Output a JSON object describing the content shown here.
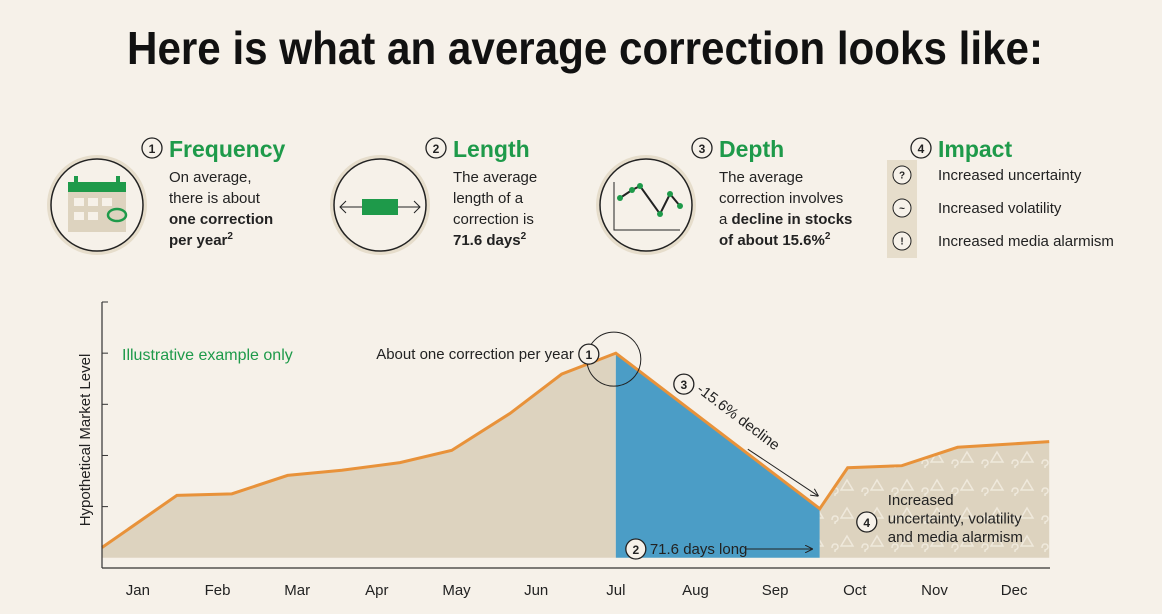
{
  "header": {
    "title": "Here is what an average correction looks like:"
  },
  "facts": [
    {
      "number": "1",
      "title": "Frequency",
      "lines": [
        [
          {
            "text": "On average,"
          }
        ],
        [
          {
            "text": "there is about"
          }
        ],
        [
          {
            "text": "one correction",
            "bold": true
          }
        ],
        [
          {
            "text": "per year",
            "bold": true
          },
          {
            "text": "2",
            "bold": true,
            "sup": true
          }
        ]
      ]
    },
    {
      "number": "2",
      "title": "Length",
      "lines": [
        [
          {
            "text": "The average"
          }
        ],
        [
          {
            "text": "length of a"
          }
        ],
        [
          {
            "text": "correction is"
          }
        ],
        [
          {
            "text": "71.6 days",
            "bold": true
          },
          {
            "text": "2",
            "bold": true,
            "sup": true
          }
        ]
      ]
    },
    {
      "number": "3",
      "title": "Depth",
      "lines": [
        [
          {
            "text": "The average"
          }
        ],
        [
          {
            "text": "correction involves"
          }
        ],
        [
          {
            "text": "a "
          },
          {
            "text": "decline in stocks",
            "bold": true
          }
        ],
        [
          {
            "text": "of about 15.6%",
            "bold": true
          },
          {
            "text": "2",
            "bold": true,
            "sup": true
          }
        ]
      ]
    },
    {
      "number": "4",
      "title": "Impact",
      "items": [
        "Increased uncertainty",
        "Increased volatility",
        "Increased media alarmism"
      ],
      "icons": [
        "?",
        "~",
        "!"
      ]
    }
  ],
  "chart_data": {
    "type": "area",
    "ylabel": "Hypothetical Market Level",
    "x": [
      -0.45,
      0.49,
      1.18,
      1.88,
      2.56,
      3.29,
      3.94,
      4.67,
      5.32,
      6.0,
      8.56,
      8.91,
      9.59,
      10.29,
      11.44
    ],
    "values": [
      0.2,
      1.22,
      1.25,
      1.61,
      1.71,
      1.86,
      2.1,
      2.82,
      3.59,
      4.0,
      0.96,
      1.76,
      1.8,
      2.16,
      2.27
    ],
    "xlim": [
      -0.45,
      11.45
    ],
    "xticks": [
      {
        "value": 0,
        "label": "Jan"
      },
      {
        "value": 1,
        "label": "Feb"
      },
      {
        "value": 2,
        "label": "Mar"
      },
      {
        "value": 3,
        "label": "Apr"
      },
      {
        "value": 4,
        "label": "May"
      },
      {
        "value": 5,
        "label": "Jun"
      },
      {
        "value": 6,
        "label": "Jul"
      },
      {
        "value": 7,
        "label": "Aug"
      },
      {
        "value": 8,
        "label": "Sep"
      },
      {
        "value": 9,
        "label": "Oct"
      },
      {
        "value": 10,
        "label": "Nov"
      },
      {
        "value": 11,
        "label": "Dec"
      }
    ],
    "ylim": [
      -0.2,
      5
    ],
    "yticks": [
      1,
      2,
      3,
      4,
      5
    ],
    "line_color": "#e8923a",
    "area_color": "#ddd3bf",
    "correction_color": "#4b9dc6",
    "annotations": {
      "note": "Illustrative example only",
      "peak": {
        "number": "1",
        "text": "About one correction per year"
      },
      "decline": {
        "number": "3",
        "text": "-15.6% decline"
      },
      "length": {
        "number": "2",
        "text": "71.6 days long"
      },
      "impact": {
        "number": "4",
        "lines": [
          "Increased",
          "uncertainty, volatility",
          "and media alarmism"
        ]
      }
    }
  }
}
